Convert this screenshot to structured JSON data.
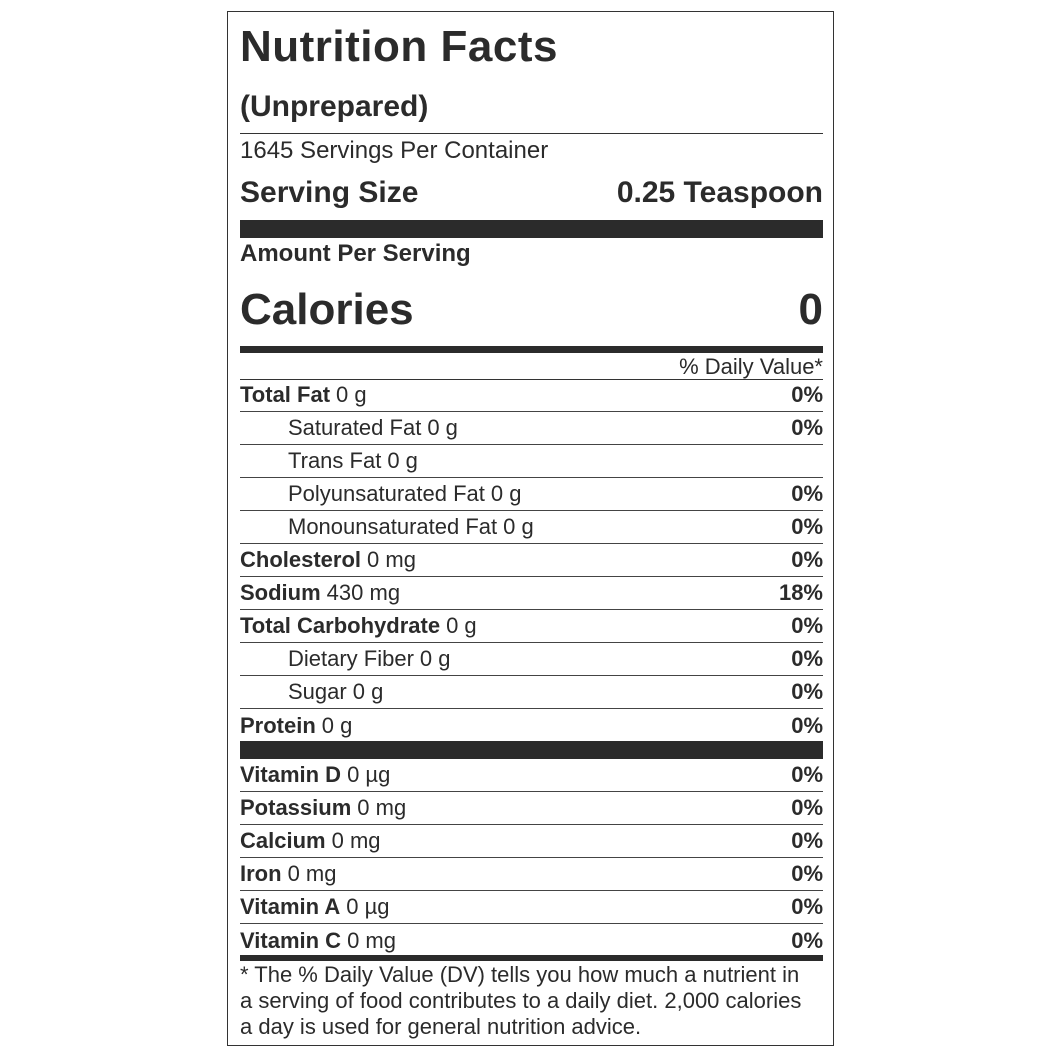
{
  "label": {
    "title": "Nutrition Facts",
    "subtitle": "(Unprepared)",
    "servings": "1645 Servings Per Container",
    "serving_size_label": "Serving Size",
    "serving_size_value": "0.25 Teaspoon",
    "amount_per_serving": "Amount Per Serving",
    "calories_label": "Calories",
    "calories_value": 0,
    "dv_header": "% Daily Value*",
    "nutrients": [
      {
        "name": "Total Fat",
        "amount": "0 g",
        "dv": "0%",
        "indent": false
      },
      {
        "name": "Saturated Fat",
        "amount": "0 g",
        "dv": "0%",
        "indent": true
      },
      {
        "name": "Trans Fat",
        "amount": "0 g",
        "indent": true
      },
      {
        "name": "Polyunsaturated Fat",
        "amount": "0 g",
        "dv": "0%",
        "indent": true
      },
      {
        "name": "Monounsaturated Fat",
        "amount": "0 g",
        "dv": "0%",
        "indent": true
      },
      {
        "name": "Cholesterol",
        "amount": "0 mg",
        "dv": "0%",
        "indent": false
      },
      {
        "name": "Sodium",
        "amount": "430 mg",
        "dv": "18%",
        "indent": false
      },
      {
        "name": "Total Carbohydrate",
        "amount": "0 g",
        "dv": "0%",
        "indent": false
      },
      {
        "name": "Dietary Fiber",
        "amount": "0 g",
        "dv": "0%",
        "indent": true
      },
      {
        "name": "Sugar",
        "amount": "0 g",
        "dv": "0%",
        "indent": true
      },
      {
        "name": "Protein",
        "amount": "0 g",
        "dv": "0%",
        "indent": false
      }
    ],
    "vitamins": [
      {
        "name": "Vitamin D",
        "amount": "0 µg",
        "dv": "0%"
      },
      {
        "name": "Potassium",
        "amount": "0 mg",
        "dv": "0%"
      },
      {
        "name": "Calcium",
        "amount": "0 mg",
        "dv": "0%"
      },
      {
        "name": "Iron",
        "amount": "0 mg",
        "dv": "0%"
      },
      {
        "name": "Vitamin A",
        "amount": "0 µg",
        "dv": "0%"
      },
      {
        "name": "Vitamin C",
        "amount": "0 mg",
        "dv": "0%"
      }
    ],
    "footnote": "* The % Daily Value (DV) tells you how much a nutrient in a serving of food contributes to a daily diet. 2,000 calories a day is used for general nutrition advice."
  }
}
